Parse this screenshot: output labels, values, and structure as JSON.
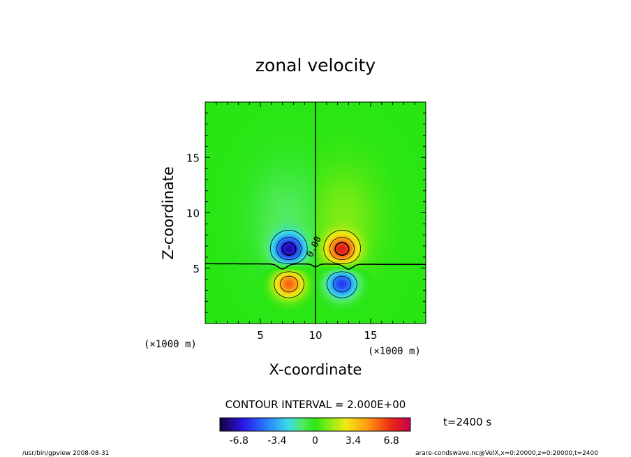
{
  "chart_data": {
    "type": "heatmap",
    "title": "zonal velocity",
    "xlabel": "X-coordinate",
    "ylabel": "Z-coordinate",
    "x_unit": "(×1000 m)",
    "y_unit": "(×1000 m)",
    "xlim": [
      0,
      20
    ],
    "ylim": [
      0,
      20
    ],
    "xticks": [
      5,
      10,
      15
    ],
    "yticks": [
      5,
      10,
      15
    ],
    "contour_interval_label": "CONTOUR INTERVAL = 2.000E+00",
    "contour_interval": 2.0,
    "zero_contour_label": "0.00",
    "time_label": "t=2400 s",
    "colorbar": {
      "ticks": [
        "-6.8",
        "-3.4",
        "0",
        "3.4",
        "6.8"
      ],
      "range": [
        -8.5,
        8.5
      ]
    },
    "anomalies": [
      {
        "x": 7.6,
        "z": 6.7,
        "value": -6.5
      },
      {
        "x": 12.4,
        "z": 6.7,
        "value": 6.5
      },
      {
        "x": 7.6,
        "z": 3.6,
        "value": 6.0
      },
      {
        "x": 12.4,
        "z": 3.6,
        "value": -6.0
      }
    ]
  },
  "footer": {
    "left": "/usr/bin/gpview   2008-08-31",
    "right": "arare-condswave.nc@VelX,x=0:20000,z=0:20000,t=2400"
  }
}
